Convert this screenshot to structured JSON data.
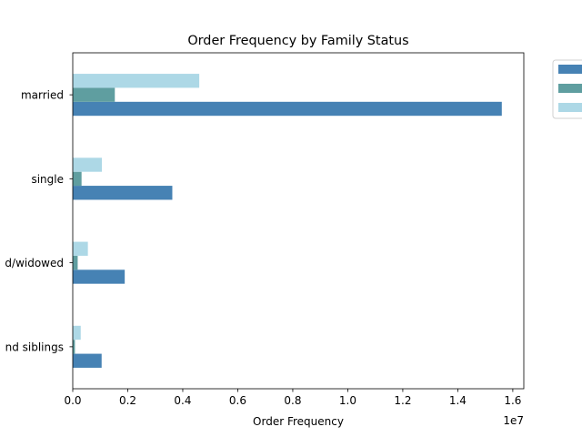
{
  "chart_data": {
    "type": "bar",
    "orientation": "horizontal",
    "title": "Order Frequency by Family Status",
    "xlabel": "Order Frequency",
    "ylabel": "",
    "x_offset_label": "1e7",
    "x_ticks": [
      0.0,
      0.2,
      0.4,
      0.6,
      0.8,
      1.0,
      1.2,
      1.4,
      1.6
    ],
    "x_tick_scale": 10000000,
    "xlim": [
      0,
      16400000
    ],
    "categories": [
      "married",
      "single",
      "d/widowed",
      "nd siblings"
    ],
    "series": [
      {
        "color": "#4682b4",
        "values": [
          15600000,
          3620000,
          1890000,
          1050000
        ]
      },
      {
        "color": "#5f9ea0",
        "values": [
          1530000,
          320000,
          180000,
          80000
        ]
      },
      {
        "color": "#add8e6",
        "values": [
          4600000,
          1060000,
          550000,
          290000
        ]
      }
    ],
    "legend_position": "upper-right-outside",
    "grid": false
  }
}
